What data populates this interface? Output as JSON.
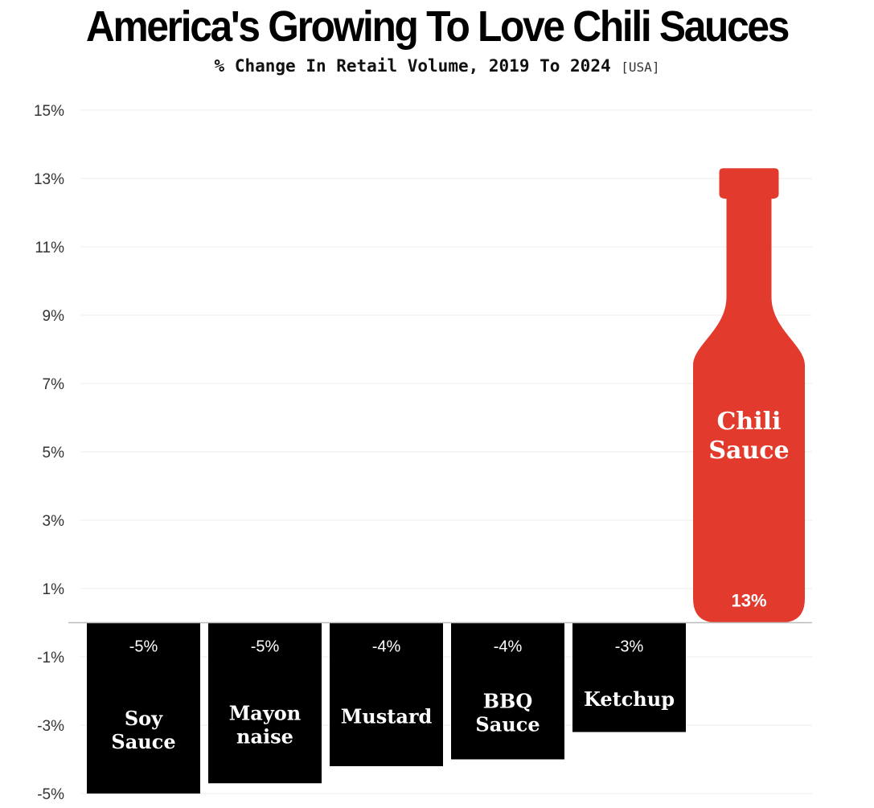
{
  "chart_data": {
    "type": "bar",
    "title": "America's Growing To Love Chili Sauces",
    "subtitle": "% Change In Retail Volume, 2019 To 2024",
    "subtitle_tag": "[USA]",
    "categories": [
      [
        "Soy",
        "Sauce"
      ],
      [
        "Mayon",
        "naise"
      ],
      [
        "Mustard"
      ],
      [
        "BBQ",
        "Sauce"
      ],
      [
        "Ketchup"
      ],
      [
        "Chili",
        "Sauce"
      ]
    ],
    "values": [
      -5,
      -4.7,
      -4.2,
      -4,
      -3.2,
      13.3
    ],
    "value_labels": [
      "-5%",
      "-5%",
      "-4%",
      "-4%",
      "-3%",
      "13%"
    ],
    "yticks": [
      15,
      13,
      11,
      9,
      7,
      5,
      3,
      1,
      -1,
      -3,
      -5
    ],
    "ytick_labels": [
      "15%",
      "13%",
      "11%",
      "9%",
      "7%",
      "5%",
      "3%",
      "1%",
      "-1%",
      "-3%",
      "-5%"
    ],
    "ylim": [
      -5,
      15
    ],
    "grid": true,
    "colors": {
      "negative_bar": "#000000",
      "highlight_bar": "#e23b2e",
      "gridline": "#eeeeee",
      "zero_line": "#bbbbbb"
    },
    "highlight_shape": "bottle"
  }
}
